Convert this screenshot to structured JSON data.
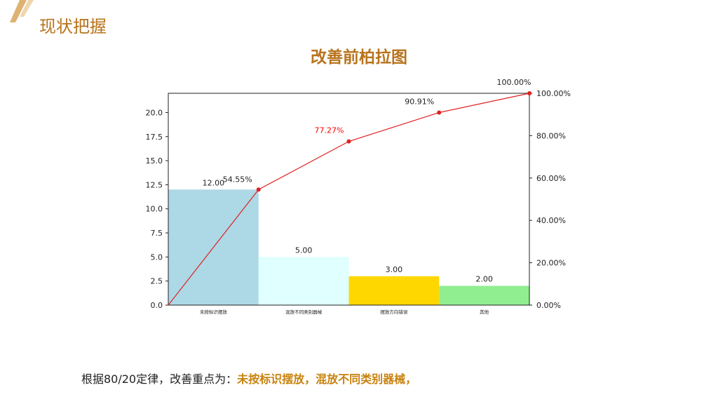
{
  "header": {
    "section_title": "现状把握",
    "chart_title": "改善前柏拉图"
  },
  "chart_data": {
    "type": "bar",
    "title": "改善前柏拉图",
    "categories": [
      "未按标识摆放",
      "混放不同类别器械",
      "摆放方向错误",
      "其他"
    ],
    "values": [
      12,
      5,
      3,
      2
    ],
    "value_labels": [
      "12.00",
      "5.00",
      "3.00",
      "2.00"
    ],
    "bar_colors": [
      "#add8e6",
      "#e0ffff",
      "#ffd700",
      "#90ee90"
    ],
    "cumulative": {
      "type": "line",
      "x": [
        0,
        1,
        2,
        3,
        4
      ],
      "values": [
        0,
        54.55,
        77.27,
        90.91,
        100.0
      ],
      "labels": [
        "",
        "54.55%",
        "77.27%",
        "90.91%",
        "100.00%"
      ],
      "label_colors": [
        "#222222",
        "#222222",
        "#ff0000",
        "#222222",
        "#222222"
      ],
      "color": "#e02020"
    },
    "y_left": {
      "ylim": [
        0,
        22
      ],
      "ticks": [
        0,
        2.5,
        5,
        7.5,
        10,
        12.5,
        15,
        17.5,
        20
      ],
      "tick_labels": [
        "0.0",
        "2.5",
        "5.0",
        "7.5",
        "10.0",
        "12.5",
        "15.0",
        "17.5",
        "20.0"
      ]
    },
    "y_right": {
      "ylim": [
        0,
        100
      ],
      "ticks": [
        0,
        20,
        40,
        60,
        80,
        100
      ],
      "tick_labels": [
        "0.00%",
        "20.00%",
        "40.00%",
        "60.00%",
        "80.00%",
        "100.00%"
      ]
    },
    "grid": false,
    "legend": "none"
  },
  "conclusion": {
    "prefix": "根据80/20定律，改善重点为：",
    "highlight": "未按标识摆放，混放不同类别器械，"
  },
  "colors": {
    "accent": "#b8731c",
    "line": "#e02020"
  }
}
